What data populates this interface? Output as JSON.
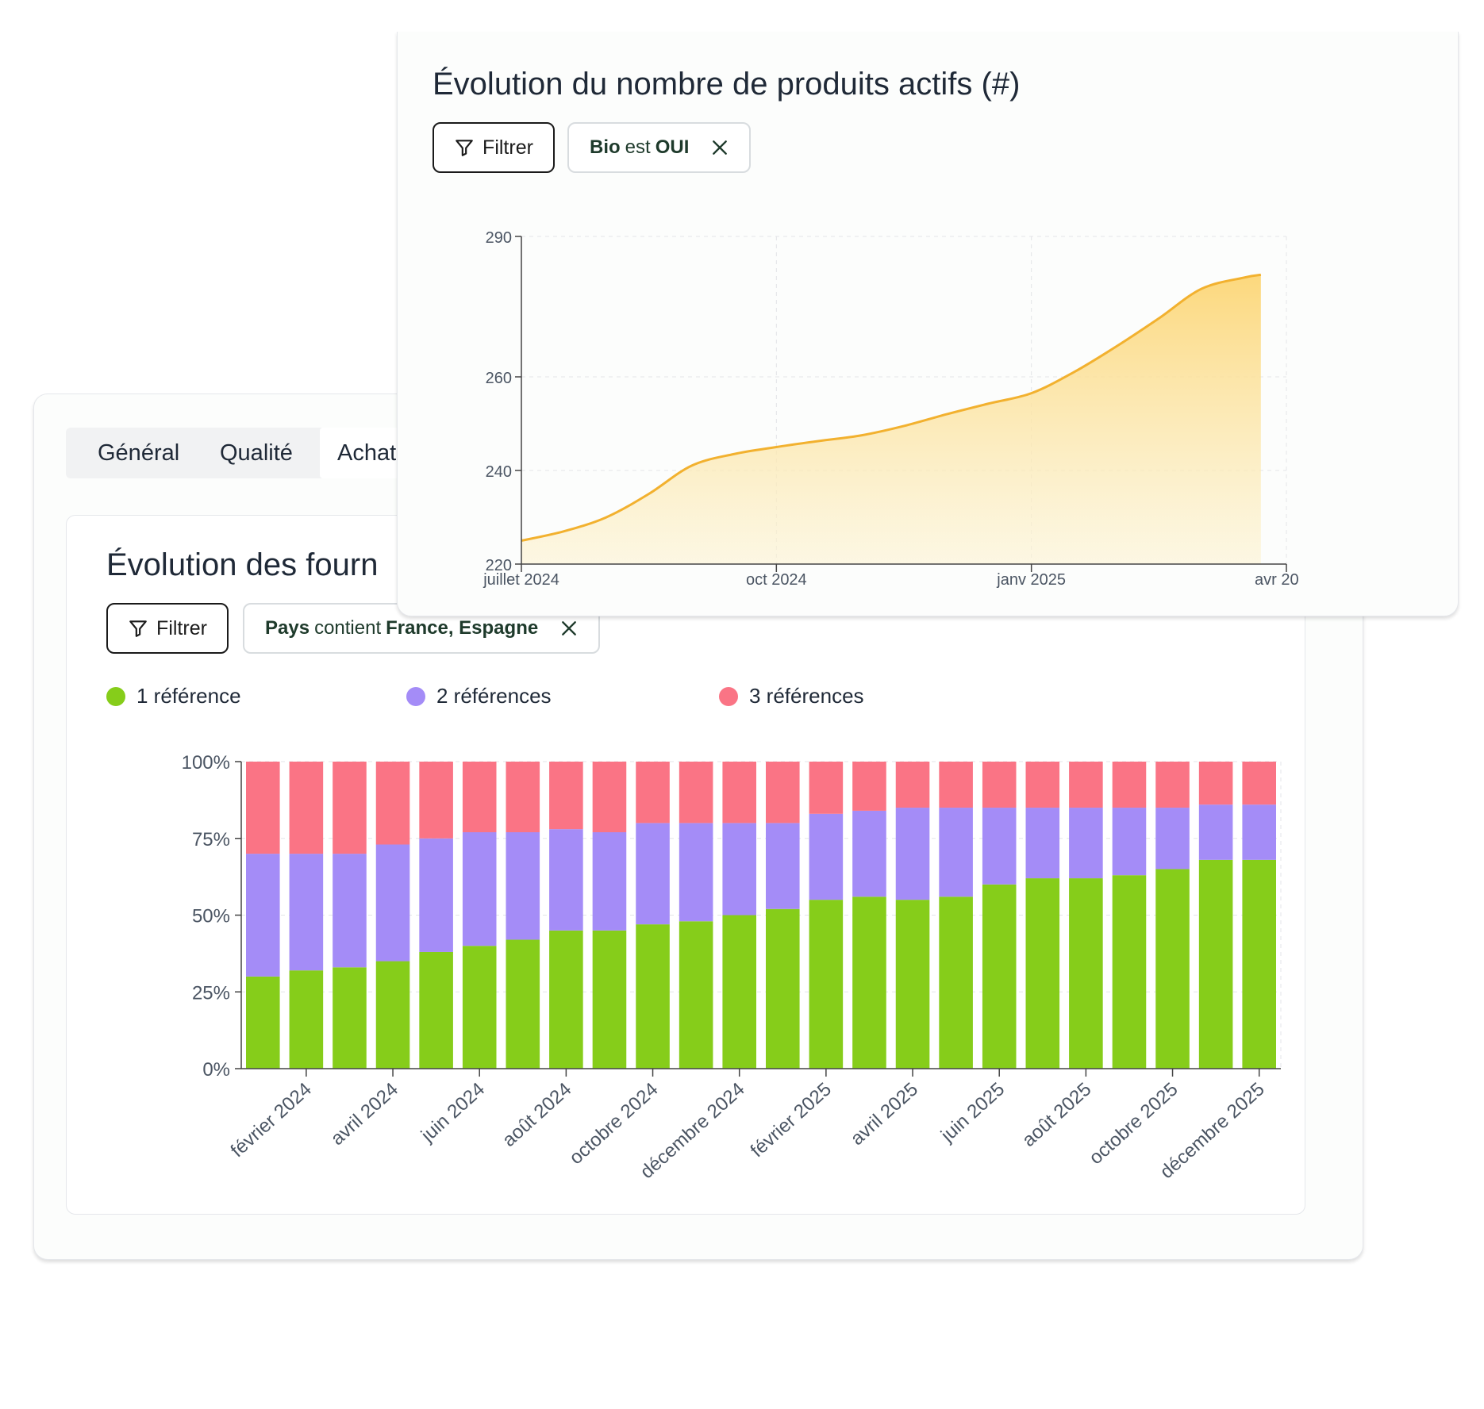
{
  "tabs": [
    {
      "label": "Général"
    },
    {
      "label": "Qualité"
    },
    {
      "label": "Achat"
    }
  ],
  "colors": {
    "series1": "#86cd1a",
    "series2": "#a48cf7",
    "series3": "#fa7485",
    "area_line": "#f2b12f",
    "area_fill": "#fcd676"
  },
  "back_panel": {
    "title": "Évolution des fourn",
    "filter_label": "Filtrer",
    "chip": {
      "field": "Pays",
      "operator": "contient",
      "value": "France, Espagne"
    },
    "legend": [
      "1 référence",
      "2 références",
      "3 références"
    ]
  },
  "front_panel": {
    "title": "Évolution du nombre de produits actifs (#)",
    "filter_label": "Filtrer",
    "chip": {
      "field": "Bio",
      "operator": "est",
      "value": "OUI"
    }
  },
  "chart_data": [
    {
      "type": "bar",
      "stacked": true,
      "percent": true,
      "title": "",
      "y_ticks": [
        "0%",
        "25%",
        "50%",
        "75%",
        "100%"
      ],
      "ylim": [
        0,
        100
      ],
      "x_tick_labels": [
        "février 2024",
        "avril 2024",
        "juin 2024",
        "août 2024",
        "octobre 2024",
        "décembre 2024",
        "février 2025",
        "avril 2025",
        "juin 2025",
        "août 2025",
        "octobre 2025",
        "décembre 2025"
      ],
      "x_tick_positions": [
        1,
        3,
        5,
        7,
        9,
        11,
        13,
        15,
        17,
        19,
        21,
        23
      ],
      "bar_count": 24,
      "series": [
        {
          "name": "1 référence",
          "values": [
            30,
            32,
            33,
            35,
            38,
            40,
            42,
            45,
            45,
            47,
            48,
            50,
            52,
            55,
            56,
            55,
            56,
            60,
            62,
            62,
            63,
            65,
            68,
            68
          ]
        },
        {
          "name": "2 références",
          "values": [
            40,
            38,
            37,
            38,
            37,
            37,
            35,
            33,
            32,
            33,
            32,
            30,
            28,
            28,
            28,
            30,
            29,
            25,
            23,
            23,
            22,
            20,
            18,
            18
          ]
        },
        {
          "name": "3 références",
          "values": [
            30,
            30,
            30,
            27,
            25,
            23,
            23,
            22,
            23,
            20,
            20,
            20,
            20,
            17,
            16,
            15,
            15,
            15,
            15,
            15,
            15,
            15,
            14,
            14
          ]
        }
      ],
      "legend_position": "top-left",
      "grid": true
    },
    {
      "type": "area",
      "title": "Évolution du nombre de produits actifs (#)",
      "x_tick_labels": [
        "juillet 2024",
        "oct 2024",
        "janv 2025",
        "avr 20"
      ],
      "x_tick_months": [
        0,
        3,
        6,
        9
      ],
      "y_ticks": [
        220,
        240,
        260,
        290
      ],
      "ylim": [
        220,
        290
      ],
      "xlim_months": [
        0,
        9
      ],
      "x_months": [
        0,
        0.5,
        1.0,
        1.5,
        2.0,
        2.5,
        3.0,
        3.5,
        4.0,
        4.5,
        5.0,
        5.5,
        6.0,
        6.5,
        7.0,
        7.5,
        8.0,
        8.5,
        8.7
      ],
      "values": [
        225,
        227,
        230,
        235,
        241,
        243.5,
        245,
        246.3,
        247.5,
        249.5,
        252,
        254.3,
        256.5,
        261,
        266.5,
        272.5,
        278.8,
        281.2,
        281.8
      ],
      "grid": true
    }
  ]
}
